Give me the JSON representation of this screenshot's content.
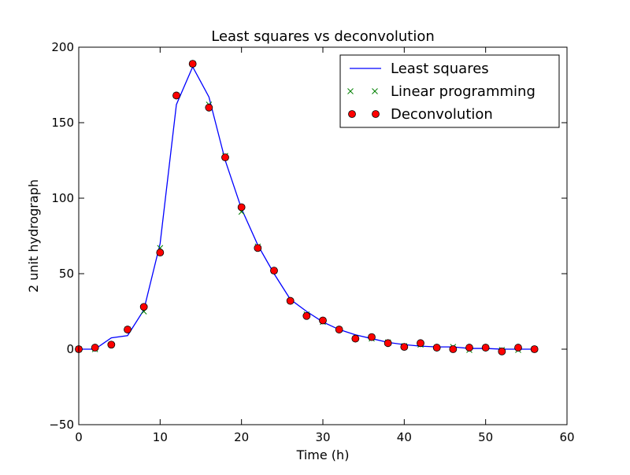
{
  "chart_data": {
    "type": "line",
    "title": "Least squares vs deconvolution",
    "xlabel": "Time (h)",
    "ylabel": "2 unit hydrograph",
    "xlim": [
      0,
      60
    ],
    "ylim": [
      -50,
      200
    ],
    "xticks": [
      0,
      10,
      20,
      30,
      40,
      50,
      60
    ],
    "yticks": [
      -50,
      0,
      50,
      100,
      150,
      200
    ],
    "grid": false,
    "legend_position": "top-right",
    "x": [
      0,
      2,
      4,
      6,
      8,
      10,
      12,
      14,
      16,
      18,
      20,
      22,
      24,
      26,
      28,
      30,
      32,
      34,
      36,
      38,
      40,
      42,
      44,
      46,
      48,
      50,
      52,
      54,
      56
    ],
    "series": [
      {
        "name": "Least squares",
        "style": "line",
        "color": "#0000ff",
        "values": [
          0,
          0,
          7.5,
          9,
          26,
          70,
          162,
          187,
          167,
          125,
          93,
          69,
          50,
          33,
          25,
          18,
          13,
          9.5,
          7,
          4.5,
          3,
          2,
          1.5,
          1.5,
          0.5,
          0.5,
          0,
          0,
          0
        ]
      },
      {
        "name": "Linear programming",
        "style": "x",
        "color": "#008000",
        "values": [
          0,
          0,
          3,
          13,
          25,
          67,
          168,
          189,
          162,
          128,
          91,
          68,
          52,
          32,
          23,
          18,
          13,
          7,
          7,
          4.5,
          2,
          3,
          1,
          1.5,
          -0.5,
          1,
          -0.5,
          -0.5,
          0
        ]
      },
      {
        "name": "Deconvolution",
        "style": "o",
        "color": "#ff0000",
        "values": [
          0,
          1,
          3,
          13,
          28,
          64,
          168,
          189,
          160,
          127,
          94,
          67,
          52,
          32,
          22,
          19,
          13,
          7,
          8,
          4,
          1.5,
          4,
          1,
          0,
          1,
          1,
          -1.5,
          1,
          0
        ]
      }
    ]
  }
}
